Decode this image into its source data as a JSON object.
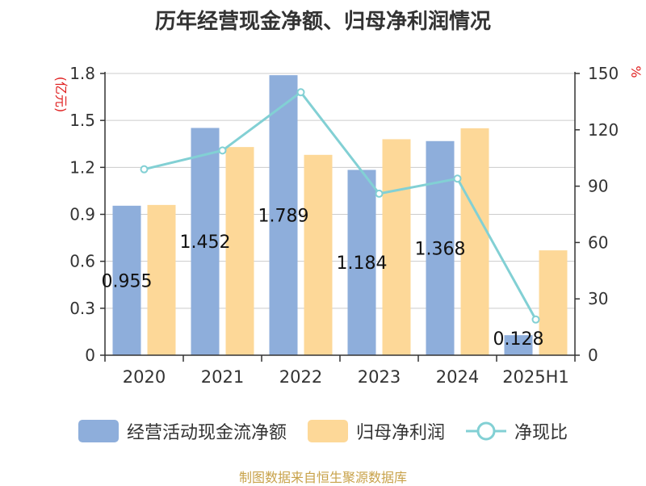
{
  "chart_data": {
    "type": "bar+line",
    "title": "历年经营现金净额、归母净利润情况",
    "ylabel_left": "(亿元)",
    "ylabel_right": "%",
    "categories": [
      "2020",
      "2021",
      "2022",
      "2023",
      "2024",
      "2025H1"
    ],
    "y_left": {
      "lim": [
        0,
        1.8
      ],
      "ticks": [
        "0",
        "0.3",
        "0.6",
        "0.9",
        "1.2",
        "1.5",
        "1.8"
      ]
    },
    "y_right": {
      "lim": [
        0,
        150
      ],
      "ticks": [
        "0",
        "30",
        "60",
        "90",
        "120",
        "150"
      ]
    },
    "series": [
      {
        "name": "经营活动现金流净额",
        "type": "bar",
        "axis": "left",
        "values": [
          0.955,
          1.452,
          1.789,
          1.184,
          1.368,
          0.128
        ],
        "labels": [
          "0.955",
          "1.452",
          "1.789",
          "1.184",
          "1.368",
          "0.128"
        ],
        "color": "#8eaedb"
      },
      {
        "name": "归母净利润",
        "type": "bar",
        "axis": "left",
        "values": [
          0.96,
          1.33,
          1.28,
          1.38,
          1.45,
          0.67
        ],
        "color": "#fdd898"
      },
      {
        "name": "净现比",
        "type": "line",
        "axis": "right",
        "values": [
          99,
          109,
          140,
          86,
          94,
          19
        ],
        "color": "#82d0d4"
      }
    ],
    "grid": true,
    "legend_position": "bottom"
  },
  "source": "制图数据来自恒生聚源数据库"
}
